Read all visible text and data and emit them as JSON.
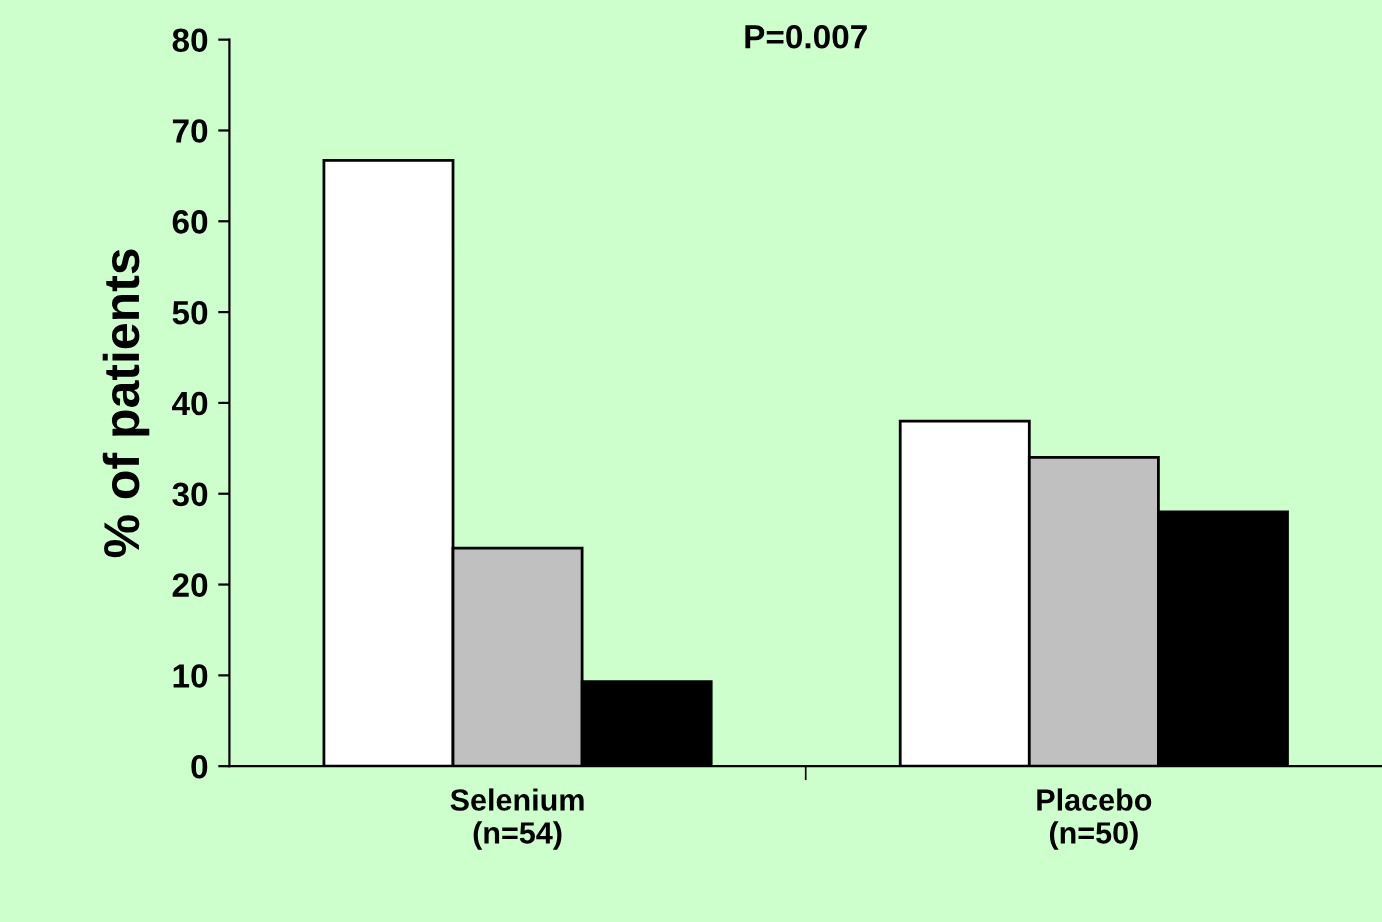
{
  "chart_data": {
    "type": "bar",
    "ylabel": "% of patients",
    "categories": [
      "Selenium\n(n=54)",
      "Placebo\n(n=50)"
    ],
    "series": [
      {
        "color": "#ffffff",
        "values": [
          66.7,
          38
        ]
      },
      {
        "color": "#c0c0c0",
        "values": [
          24,
          34
        ]
      },
      {
        "color": "#000000",
        "values": [
          9.3,
          28
        ]
      }
    ],
    "ylim": [
      0,
      80
    ],
    "yticks": [
      0,
      10,
      20,
      30,
      40,
      50,
      60,
      70,
      80
    ],
    "grid": false,
    "legend": false,
    "annotations": [
      "P=0.007"
    ]
  }
}
